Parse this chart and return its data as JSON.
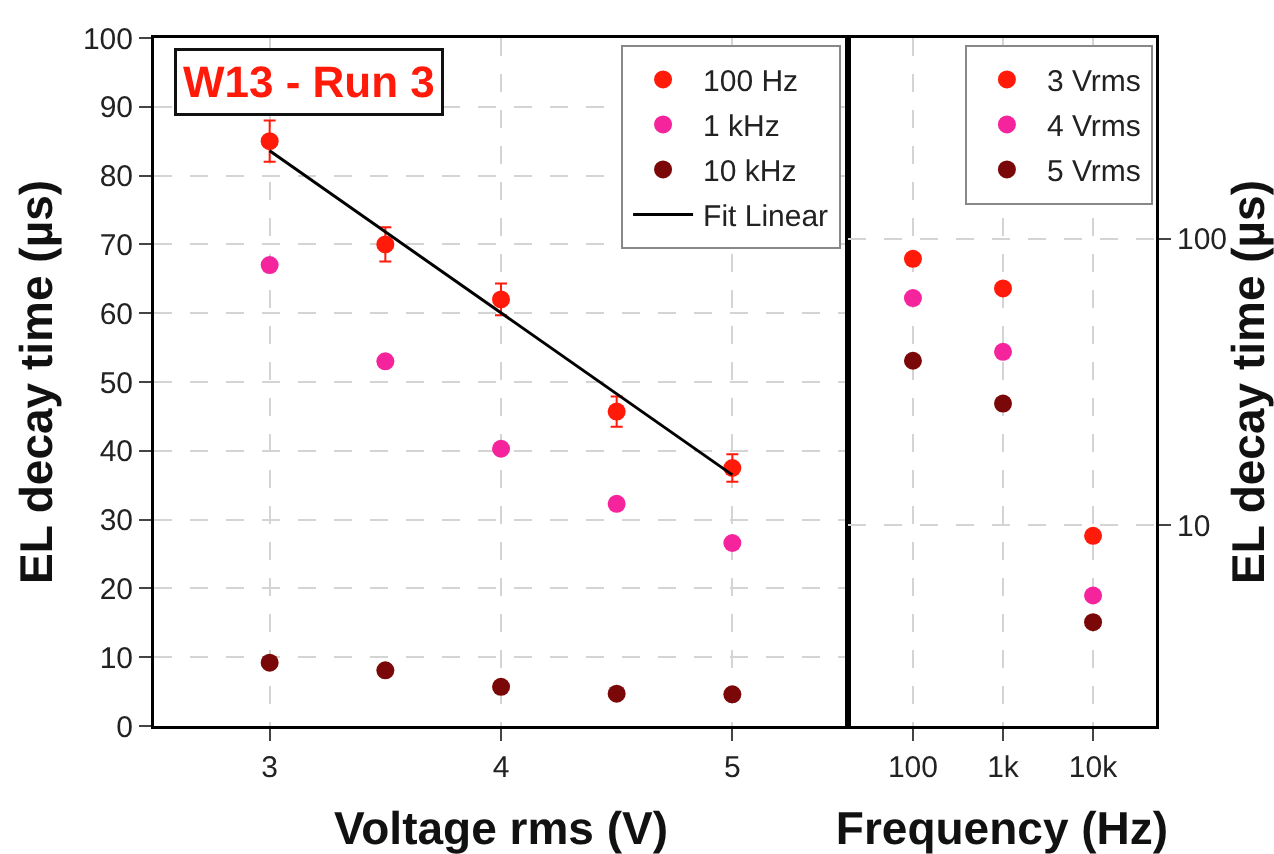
{
  "chart_data": [
    {
      "type": "scatter",
      "xlabel": "Voltage rms (V)",
      "ylabel": "EL decay time (µs)",
      "annotations": [
        "W13 - Run 3"
      ],
      "x": [
        3,
        3.5,
        4,
        4.5,
        5
      ],
      "xlim": [
        2.5,
        5.5
      ],
      "xticks": [
        3,
        4,
        5
      ],
      "ylim": [
        0,
        100
      ],
      "yticks": [
        0,
        10,
        20,
        30,
        40,
        50,
        60,
        70,
        80,
        90,
        100
      ],
      "series": [
        {
          "name": "100 Hz",
          "color": "#ff1a0a",
          "values": [
            85,
            70,
            62,
            45.7,
            37.5
          ],
          "errors": [
            3,
            2.5,
            2.3,
            2.2,
            2
          ]
        },
        {
          "name": "1 kHz",
          "color": "#f5239c",
          "values": [
            67,
            53,
            40.3,
            32.3,
            26.6
          ]
        },
        {
          "name": "10 kHz",
          "color": "#7a0808",
          "values": [
            9.2,
            8.1,
            5.7,
            4.7,
            4.6
          ]
        },
        {
          "name": "Fit Linear",
          "type": "line",
          "color": "#000000",
          "x": [
            3,
            5
          ],
          "values": [
            83.6,
            36.5
          ],
          "marker": "none"
        }
      ],
      "marker": "circle",
      "grid": true,
      "legend": "top right"
    },
    {
      "type": "scatter",
      "xlabel": "Frequency (Hz)",
      "ylabel": "EL decay time (µs)",
      "log": "xy",
      "x": [
        100,
        1000,
        10000
      ],
      "xlim": [
        19,
        50000
      ],
      "xticks": [
        {
          "value": 100,
          "label": "100"
        },
        {
          "value": 1000,
          "label": "1k"
        },
        {
          "value": 10000,
          "label": "10k"
        }
      ],
      "ylim": [
        2,
        500
      ],
      "yticks": [
        10,
        100
      ],
      "series": [
        {
          "name": "3 Vrms",
          "color": "#ff1a0a",
          "values": [
            85,
            67,
            9.2
          ]
        },
        {
          "name": "4 Vrms",
          "color": "#f5239c",
          "values": [
            62,
            40.3,
            5.7
          ]
        },
        {
          "name": "5 Vrms",
          "color": "#7a0808",
          "values": [
            37.5,
            26.6,
            4.6
          ]
        }
      ],
      "marker": "circle",
      "grid": true,
      "legend": "top right"
    }
  ]
}
